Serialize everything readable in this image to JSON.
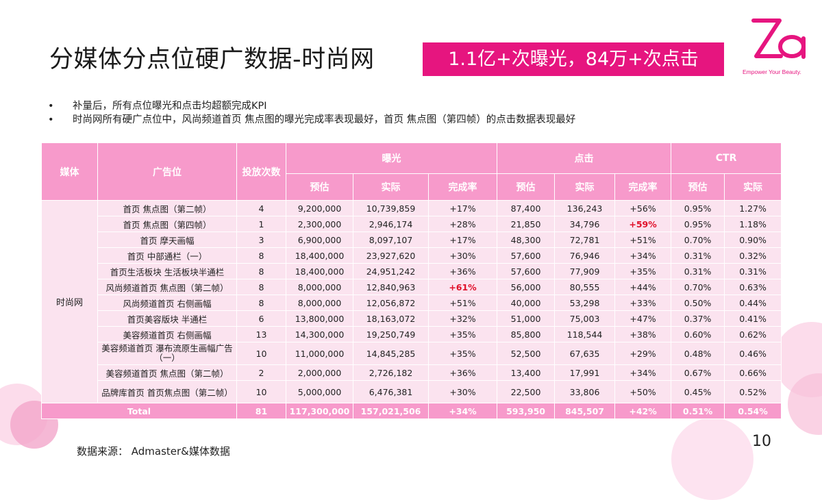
{
  "title": "分媒体分点位硬广数据-时尚网",
  "headline": "1.1亿+次曝光，84万+次点击",
  "logo": {
    "mark": "Za",
    "tagline": "Empower Your Beauty."
  },
  "bullets": [
    "补量后，所有点位曝光和点击均超额完成KPI",
    "时尚网所有硬广点位中，风尚频道首页 焦点图的曝光完成率表现最好，首页 焦点图（第四帧）的点击数据表现最好"
  ],
  "table": {
    "headers": {
      "media": "媒体",
      "slot": "广告位",
      "count": "投放次数",
      "exposure": "曝光",
      "click": "点击",
      "ctr": "CTR",
      "est": "预估",
      "actual": "实际",
      "rate": "完成率"
    },
    "media_name": "时尚网",
    "rows": [
      {
        "slot": "首页 焦点图（第二帧）",
        "count": "4",
        "exp_est": "9,200,000",
        "exp_act": "10,739,859",
        "exp_rate": "+17%",
        "clk_est": "87,400",
        "clk_act": "136,243",
        "clk_rate": "+56%",
        "ctr_est": "0.95%",
        "ctr_act": "1.27%"
      },
      {
        "slot": "首页 焦点图（第四帧）",
        "count": "1",
        "exp_est": "2,300,000",
        "exp_act": "2,946,174",
        "exp_rate": "+28%",
        "clk_est": "21,850",
        "clk_act": "34,796",
        "clk_rate": "+59%",
        "ctr_est": "0.95%",
        "ctr_act": "1.18%"
      },
      {
        "slot": "首页 摩天画幅",
        "count": "3",
        "exp_est": "6,900,000",
        "exp_act": "8,097,107",
        "exp_rate": "+17%",
        "clk_est": "48,300",
        "clk_act": "72,781",
        "clk_rate": "+51%",
        "ctr_est": "0.70%",
        "ctr_act": "0.90%"
      },
      {
        "slot": "首页 中部通栏（一）",
        "count": "8",
        "exp_est": "18,400,000",
        "exp_act": "23,927,620",
        "exp_rate": "+30%",
        "clk_est": "57,600",
        "clk_act": "76,946",
        "clk_rate": "+34%",
        "ctr_est": "0.31%",
        "ctr_act": "0.32%"
      },
      {
        "slot": "首页生活板块 生活板块半通栏",
        "count": "8",
        "exp_est": "18,400,000",
        "exp_act": "24,951,242",
        "exp_rate": "+36%",
        "clk_est": "57,600",
        "clk_act": "77,909",
        "clk_rate": "+35%",
        "ctr_est": "0.31%",
        "ctr_act": "0.31%"
      },
      {
        "slot": "风尚频道首页 焦点图（第二帧）",
        "count": "8",
        "exp_est": "8,000,000",
        "exp_act": "12,840,963",
        "exp_rate": "+61%",
        "clk_est": "56,000",
        "clk_act": "80,555",
        "clk_rate": "+44%",
        "ctr_est": "0.70%",
        "ctr_act": "0.63%"
      },
      {
        "slot": "风尚频道首页 右侧画幅",
        "count": "8",
        "exp_est": "8,000,000",
        "exp_act": "12,056,872",
        "exp_rate": "+51%",
        "clk_est": "40,000",
        "clk_act": "53,298",
        "clk_rate": "+33%",
        "ctr_est": "0.50%",
        "ctr_act": "0.44%"
      },
      {
        "slot": "首页美容版块 半通栏",
        "count": "6",
        "exp_est": "13,800,000",
        "exp_act": "18,163,072",
        "exp_rate": "+32%",
        "clk_est": "51,000",
        "clk_act": "75,003",
        "clk_rate": "+47%",
        "ctr_est": "0.37%",
        "ctr_act": "0.41%"
      },
      {
        "slot": "美容频道首页 右侧画幅",
        "count": "13",
        "exp_est": "14,300,000",
        "exp_act": "19,250,749",
        "exp_rate": "+35%",
        "clk_est": "85,800",
        "clk_act": "118,544",
        "clk_rate": "+38%",
        "ctr_est": "0.60%",
        "ctr_act": "0.62%"
      },
      {
        "slot": "美容频道首页 瀑布流原生画幅广告（一）",
        "count": "10",
        "exp_est": "11,000,000",
        "exp_act": "14,845,285",
        "exp_rate": "+35%",
        "clk_est": "52,500",
        "clk_act": "67,635",
        "clk_rate": "+29%",
        "ctr_est": "0.48%",
        "ctr_act": "0.46%"
      },
      {
        "slot": "美容频道首页 焦点图（第二帧）",
        "count": "2",
        "exp_est": "2,000,000",
        "exp_act": "2,726,182",
        "exp_rate": "+36%",
        "clk_est": "13,400",
        "clk_act": "17,991",
        "clk_rate": "+34%",
        "ctr_est": "0.67%",
        "ctr_act": "0.66%"
      },
      {
        "slot": "品牌库首页 首页焦点图（第二帧）",
        "count": "10",
        "exp_est": "5,000,000",
        "exp_act": "6,476,381",
        "exp_rate": "+30%",
        "clk_est": "22,500",
        "clk_act": "33,806",
        "clk_rate": "+50%",
        "ctr_est": "0.45%",
        "ctr_act": "0.52%"
      }
    ],
    "total": {
      "label": "Total",
      "count": "81",
      "exp_est": "117,300,000",
      "exp_act": "157,021,506",
      "exp_rate": "+34%",
      "clk_est": "593,950",
      "clk_act": "845,507",
      "clk_rate": "+42%",
      "ctr_est": "0.51%",
      "ctr_act": "0.54%"
    }
  },
  "source": "数据来源： Admaster&媒体数据",
  "page_number": "10",
  "colors": {
    "accent": "#e6157f",
    "header": "#f79acb",
    "cell": "#fbe3ef",
    "highlight": "#e0102a"
  }
}
